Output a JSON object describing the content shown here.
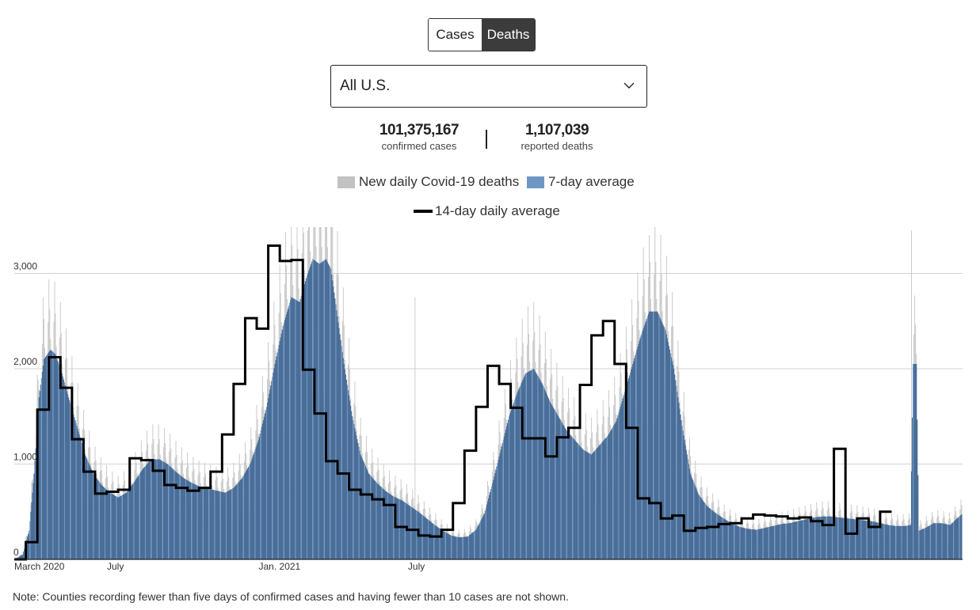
{
  "toggle": {
    "cases_label": "Cases",
    "deaths_label": "Deaths",
    "selected": "Deaths"
  },
  "region_select": {
    "value": "All U.S."
  },
  "stats": {
    "cases_value": "101,375,167",
    "cases_label": "confirmed cases",
    "deaths_value": "1,107,039",
    "deaths_label": "reported deaths"
  },
  "legend": {
    "daily_label": "New daily Covid-19 deaths",
    "avg7_label": "7-day average",
    "avg14_label": "14-day daily average"
  },
  "colors": {
    "daily": "#c8c8c8",
    "avg7_light": "#6f97c6",
    "avg7_dark": "#4a6e98",
    "avg14": "#000000",
    "grid": "#d3d3d3"
  },
  "note": "Note: Counties recording fewer than five days of confirmed cases and having fewer than 10 cases are not shown.",
  "chart_data": {
    "type": "area",
    "title": "",
    "xlabel": "",
    "ylabel": "",
    "ylim": [
      0,
      3500
    ],
    "yticks": [
      0,
      1000,
      2000,
      3000
    ],
    "ytick_labels": [
      "0",
      "1,000",
      "2,000",
      "3,000"
    ],
    "x_unit": "days since March 1, 2020",
    "xlim": [
      0,
      1150
    ],
    "xticks": [
      {
        "day": 0,
        "label": "March 2020"
      },
      {
        "day": 122,
        "label": "July"
      },
      {
        "day": 306,
        "label": "Jan. 2021"
      },
      {
        "day": 487,
        "label": "July"
      }
    ],
    "series": [
      {
        "name": "7-day average",
        "style": "area",
        "points": [
          [
            0,
            0
          ],
          [
            10,
            50
          ],
          [
            18,
            300
          ],
          [
            24,
            900
          ],
          [
            30,
            1700
          ],
          [
            36,
            2100
          ],
          [
            44,
            2200
          ],
          [
            50,
            2150
          ],
          [
            58,
            1950
          ],
          [
            66,
            1700
          ],
          [
            76,
            1400
          ],
          [
            86,
            1100
          ],
          [
            96,
            900
          ],
          [
            106,
            780
          ],
          [
            116,
            700
          ],
          [
            126,
            650
          ],
          [
            136,
            700
          ],
          [
            146,
            820
          ],
          [
            156,
            950
          ],
          [
            166,
            1050
          ],
          [
            176,
            1050
          ],
          [
            186,
            1000
          ],
          [
            196,
            920
          ],
          [
            206,
            850
          ],
          [
            216,
            800
          ],
          [
            226,
            760
          ],
          [
            236,
            740
          ],
          [
            246,
            720
          ],
          [
            256,
            700
          ],
          [
            266,
            750
          ],
          [
            276,
            850
          ],
          [
            286,
            1000
          ],
          [
            296,
            1250
          ],
          [
            306,
            1600
          ],
          [
            316,
            2050
          ],
          [
            326,
            2450
          ],
          [
            336,
            2750
          ],
          [
            346,
            2700
          ],
          [
            354,
            2950
          ],
          [
            362,
            3150
          ],
          [
            370,
            3100
          ],
          [
            378,
            3150
          ],
          [
            384,
            3050
          ],
          [
            392,
            2550
          ],
          [
            400,
            2050
          ],
          [
            410,
            1500
          ],
          [
            420,
            1100
          ],
          [
            430,
            900
          ],
          [
            440,
            800
          ],
          [
            450,
            720
          ],
          [
            460,
            660
          ],
          [
            470,
            620
          ],
          [
            480,
            560
          ],
          [
            490,
            500
          ],
          [
            500,
            430
          ],
          [
            510,
            360
          ],
          [
            520,
            300
          ],
          [
            530,
            250
          ],
          [
            540,
            230
          ],
          [
            550,
            240
          ],
          [
            560,
            310
          ],
          [
            570,
            480
          ],
          [
            580,
            800
          ],
          [
            590,
            1150
          ],
          [
            600,
            1500
          ],
          [
            610,
            1750
          ],
          [
            620,
            1950
          ],
          [
            630,
            2000
          ],
          [
            640,
            1850
          ],
          [
            650,
            1650
          ],
          [
            660,
            1500
          ],
          [
            670,
            1350
          ],
          [
            680,
            1250
          ],
          [
            690,
            1150
          ],
          [
            700,
            1100
          ],
          [
            710,
            1200
          ],
          [
            720,
            1300
          ],
          [
            730,
            1450
          ],
          [
            740,
            1750
          ],
          [
            750,
            2050
          ],
          [
            760,
            2350
          ],
          [
            770,
            2600
          ],
          [
            780,
            2600
          ],
          [
            790,
            2400
          ],
          [
            800,
            2000
          ],
          [
            810,
            1400
          ],
          [
            820,
            900
          ],
          [
            830,
            680
          ],
          [
            840,
            560
          ],
          [
            850,
            490
          ],
          [
            860,
            430
          ],
          [
            870,
            380
          ],
          [
            880,
            340
          ],
          [
            890,
            320
          ],
          [
            900,
            310
          ],
          [
            910,
            330
          ],
          [
            920,
            350
          ],
          [
            930,
            370
          ],
          [
            940,
            380
          ],
          [
            950,
            400
          ],
          [
            960,
            420
          ],
          [
            970,
            440
          ],
          [
            980,
            450
          ],
          [
            990,
            450
          ],
          [
            1000,
            440
          ],
          [
            1010,
            430
          ],
          [
            1020,
            420
          ],
          [
            1030,
            410
          ],
          [
            1040,
            400
          ],
          [
            1050,
            380
          ],
          [
            1060,
            360
          ],
          [
            1070,
            350
          ],
          [
            1080,
            350
          ],
          [
            1087,
            360
          ],
          [
            1090,
            2050
          ],
          [
            1094,
            2050
          ],
          [
            1097,
            300
          ],
          [
            1105,
            330
          ],
          [
            1115,
            380
          ],
          [
            1125,
            380
          ],
          [
            1135,
            360
          ],
          [
            1142,
            420
          ],
          [
            1150,
            480
          ]
        ]
      },
      {
        "name": "14-day daily average",
        "style": "step",
        "values": [
          0,
          180,
          1570,
          2120,
          1800,
          1260,
          920,
          690,
          710,
          730,
          1060,
          1040,
          930,
          780,
          750,
          720,
          750,
          920,
          1310,
          1840,
          2530,
          2420,
          3290,
          3130,
          3140,
          1990,
          1530,
          1030,
          900,
          730,
          680,
          630,
          570,
          340,
          310,
          250,
          240,
          310,
          590,
          1140,
          1600,
          2030,
          1840,
          1590,
          1270,
          1270,
          1080,
          1280,
          1380,
          1830,
          2350,
          2500,
          2050,
          1380,
          640,
          590,
          430,
          460,
          300,
          330,
          340,
          370,
          380,
          430,
          470,
          460,
          450,
          430,
          440,
          400,
          360,
          1160,
          270,
          430,
          340,
          500
        ]
      }
    ],
    "daily_spike_days": [
      {
        "day": 1088,
        "value": 3450
      },
      {
        "day": 486,
        "value": 2750
      },
      {
        "day": 770,
        "value": 3400
      }
    ]
  }
}
